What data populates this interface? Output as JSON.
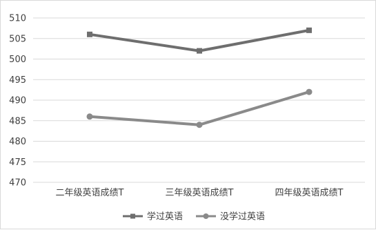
{
  "chart_data": {
    "type": "line",
    "categories": [
      "二年级英语成绩T",
      "三年级英语成绩T",
      "四年级英语成绩T"
    ],
    "series": [
      {
        "name": "学过英语",
        "values": [
          506,
          502,
          507
        ],
        "marker": "square",
        "color": "#6e6e6e"
      },
      {
        "name": "没学过英语",
        "values": [
          486,
          484,
          492
        ],
        "marker": "circle",
        "color": "#8a8a8a"
      }
    ],
    "yticks": [
      470,
      475,
      480,
      485,
      490,
      495,
      500,
      505,
      510
    ],
    "ylim": [
      470,
      510
    ],
    "grid": true,
    "legend_placement": "bottom",
    "title": "",
    "xlabel": "",
    "ylabel": ""
  }
}
